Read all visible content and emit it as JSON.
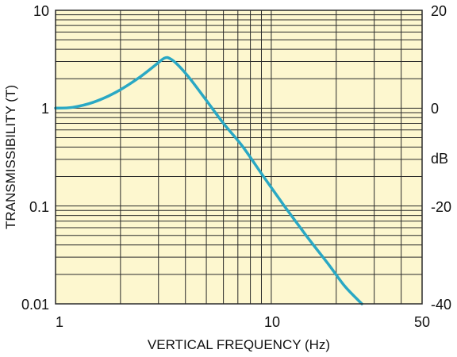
{
  "chart_data": {
    "type": "line",
    "xlabel": "VERTICAL FREQUENCY (Hz)",
    "ylabel": "TRANSMISSIBILITY (T)",
    "y2label": "dB",
    "xscale": "log",
    "yscale": "log",
    "xlim": [
      1,
      50
    ],
    "ylim": [
      0.01,
      10
    ],
    "y2lim": [
      -40,
      20
    ],
    "grid": true,
    "x_tick_labels": [
      "1",
      "10",
      "50"
    ],
    "y_tick_labels": [
      "10",
      "1",
      "0.1",
      "0.01"
    ],
    "y2_tick_labels": [
      "20",
      "0",
      "-20",
      "-40"
    ],
    "colors": {
      "background": "#fdf7cf",
      "grid": "#2a2a2a",
      "line": "#2aa8c4"
    },
    "series": [
      {
        "x": [
          1.0,
          1.2,
          1.5,
          1.9,
          2.4,
          2.9,
          3.2,
          3.4,
          3.7,
          4.2,
          5.0,
          6.0,
          7.4,
          9.2,
          11.5,
          14.5,
          18.5,
          22.0,
          26.3
        ],
        "y": [
          1.0,
          1.02,
          1.15,
          1.45,
          2.0,
          2.75,
          3.25,
          3.2,
          2.75,
          2.0,
          1.2,
          0.7,
          0.4,
          0.2,
          0.1,
          0.05,
          0.025,
          0.015,
          0.01
        ]
      }
    ]
  }
}
